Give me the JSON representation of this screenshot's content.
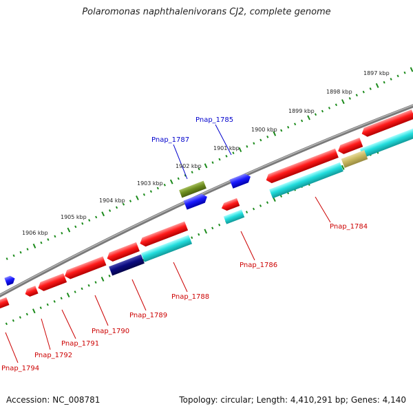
{
  "title": "Polaromonas naphthalenivorans CJ2, complete genome",
  "accession": "Accession: NC_008781",
  "topology": "Topology: circular; Length: 4,410,291 bp; Genes: 4,140",
  "colors": {
    "backbone": "#7a7a7a",
    "tick": "#1a8a1a",
    "label_red": "#cc0000",
    "label_blue": "#0000cc",
    "red": "#ff1a1a",
    "cyan": "#22dddd",
    "blue": "#1a1aff",
    "navy": "#0a0a80",
    "olive": "#6f8f20",
    "tan": "#c8b860"
  },
  "kbp_labels": [
    "1897 kbp",
    "1898 kbp",
    "1899 kbp",
    "1900 kbp",
    "1901 kbp",
    "1902 kbp",
    "1903 kbp",
    "1904 kbp",
    "1905 kbp",
    "1906 kbp"
  ],
  "gene_labels": [
    "Pnap_1784",
    "Pnap_1785",
    "Pnap_1786",
    "Pnap_1787",
    "Pnap_1788",
    "Pnap_1789",
    "Pnap_1790",
    "Pnap_1791",
    "Pnap_1792",
    "Pnap_1794"
  ]
}
